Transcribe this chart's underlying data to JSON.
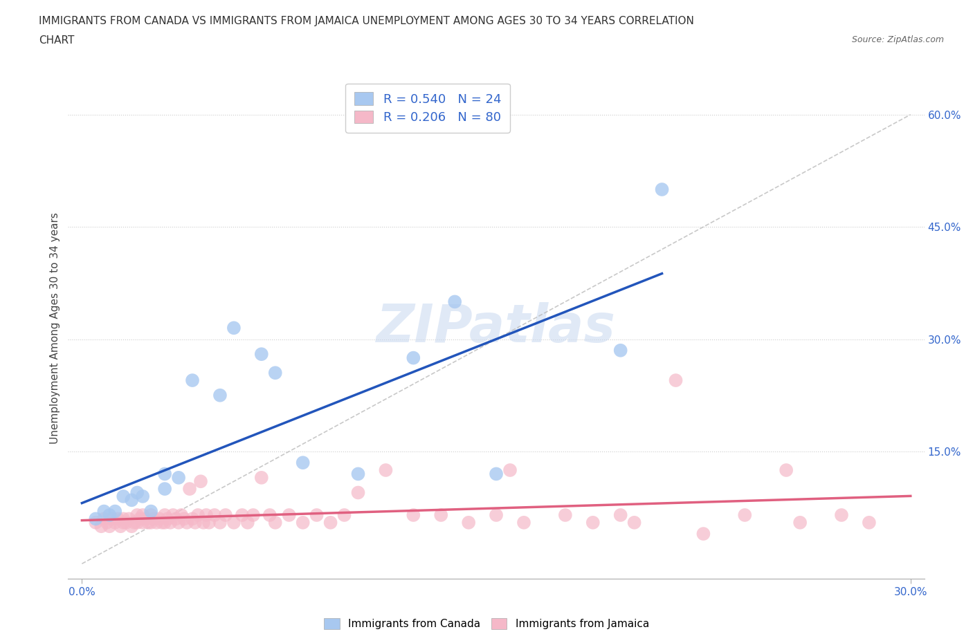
{
  "title_line1": "IMMIGRANTS FROM CANADA VS IMMIGRANTS FROM JAMAICA UNEMPLOYMENT AMONG AGES 30 TO 34 YEARS CORRELATION",
  "title_line2": "CHART",
  "source": "Source: ZipAtlas.com",
  "ylabel": "Unemployment Among Ages 30 to 34 years",
  "xlim": [
    0.0,
    0.3
  ],
  "ylim": [
    -0.02,
    0.65
  ],
  "ytick_positions": [
    0.15,
    0.3,
    0.45,
    0.6
  ],
  "canada_color": "#a8c8f0",
  "jamaica_color": "#f5b8c8",
  "canada_line_color": "#2255bb",
  "jamaica_line_color": "#e06080",
  "R_canada": 0.54,
  "N_canada": 24,
  "R_jamaica": 0.206,
  "N_jamaica": 80,
  "canada_scatter_x": [
    0.005,
    0.008,
    0.01,
    0.012,
    0.015,
    0.018,
    0.02,
    0.022,
    0.025,
    0.03,
    0.03,
    0.035,
    0.04,
    0.05,
    0.055,
    0.065,
    0.07,
    0.08,
    0.1,
    0.12,
    0.135,
    0.15,
    0.195,
    0.21
  ],
  "canada_scatter_y": [
    0.06,
    0.07,
    0.065,
    0.07,
    0.09,
    0.085,
    0.095,
    0.09,
    0.07,
    0.1,
    0.12,
    0.115,
    0.245,
    0.225,
    0.315,
    0.28,
    0.255,
    0.135,
    0.12,
    0.275,
    0.35,
    0.12,
    0.285,
    0.5
  ],
  "jamaica_scatter_x": [
    0.005,
    0.007,
    0.008,
    0.009,
    0.01,
    0.011,
    0.012,
    0.013,
    0.014,
    0.015,
    0.015,
    0.016,
    0.017,
    0.018,
    0.019,
    0.02,
    0.02,
    0.021,
    0.022,
    0.022,
    0.023,
    0.024,
    0.025,
    0.025,
    0.026,
    0.027,
    0.028,
    0.029,
    0.03,
    0.03,
    0.031,
    0.032,
    0.033,
    0.034,
    0.035,
    0.036,
    0.037,
    0.038,
    0.039,
    0.04,
    0.041,
    0.042,
    0.043,
    0.044,
    0.045,
    0.046,
    0.048,
    0.05,
    0.052,
    0.055,
    0.058,
    0.06,
    0.062,
    0.065,
    0.068,
    0.07,
    0.075,
    0.08,
    0.085,
    0.09,
    0.095,
    0.1,
    0.11,
    0.12,
    0.13,
    0.14,
    0.15,
    0.155,
    0.16,
    0.175,
    0.185,
    0.195,
    0.2,
    0.215,
    0.225,
    0.24,
    0.255,
    0.26,
    0.275,
    0.285
  ],
  "jamaica_scatter_y": [
    0.055,
    0.05,
    0.06,
    0.055,
    0.05,
    0.06,
    0.055,
    0.06,
    0.05,
    0.055,
    0.06,
    0.055,
    0.06,
    0.05,
    0.055,
    0.055,
    0.065,
    0.06,
    0.055,
    0.065,
    0.06,
    0.055,
    0.055,
    0.065,
    0.06,
    0.055,
    0.06,
    0.055,
    0.055,
    0.065,
    0.06,
    0.055,
    0.065,
    0.06,
    0.055,
    0.065,
    0.06,
    0.055,
    0.1,
    0.06,
    0.055,
    0.065,
    0.11,
    0.055,
    0.065,
    0.055,
    0.065,
    0.055,
    0.065,
    0.055,
    0.065,
    0.055,
    0.065,
    0.115,
    0.065,
    0.055,
    0.065,
    0.055,
    0.065,
    0.055,
    0.065,
    0.095,
    0.125,
    0.065,
    0.065,
    0.055,
    0.065,
    0.125,
    0.055,
    0.065,
    0.055,
    0.065,
    0.055,
    0.245,
    0.04,
    0.065,
    0.125,
    0.055,
    0.065,
    0.055
  ],
  "watermark": "ZIPatlas",
  "watermark_color": "#c8d8f0",
  "legend_color": "#3366cc",
  "background_color": "#ffffff"
}
